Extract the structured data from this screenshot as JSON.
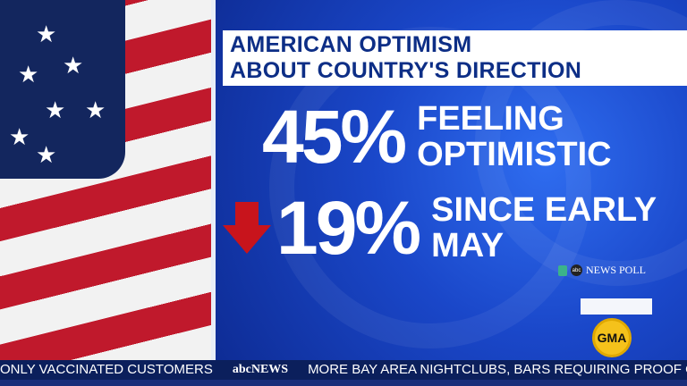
{
  "title": {
    "line1": "AMERICAN OPTIMISM",
    "line2": "ABOUT COUNTRY'S DIRECTION"
  },
  "stats": [
    {
      "value": "45%",
      "label_line1": "FEELING",
      "label_line2": "OPTIMISTIC"
    },
    {
      "value": "19%",
      "label_line1": "SINCE EARLY",
      "label_line2": "MAY",
      "trend": "down"
    }
  ],
  "source": "NEWS POLL",
  "logo": "GMA",
  "ticker": {
    "left": "ONLY VACCINATED CUSTOMERS",
    "brand": "NEWS",
    "right": "MORE BAY AREA NIGHTCLUBS, BARS REQUIRING PROOF OF VAC"
  },
  "colors": {
    "down_arrow": "#c8141c",
    "title_text": "#0d2e86",
    "panel": "#1a47c9"
  }
}
